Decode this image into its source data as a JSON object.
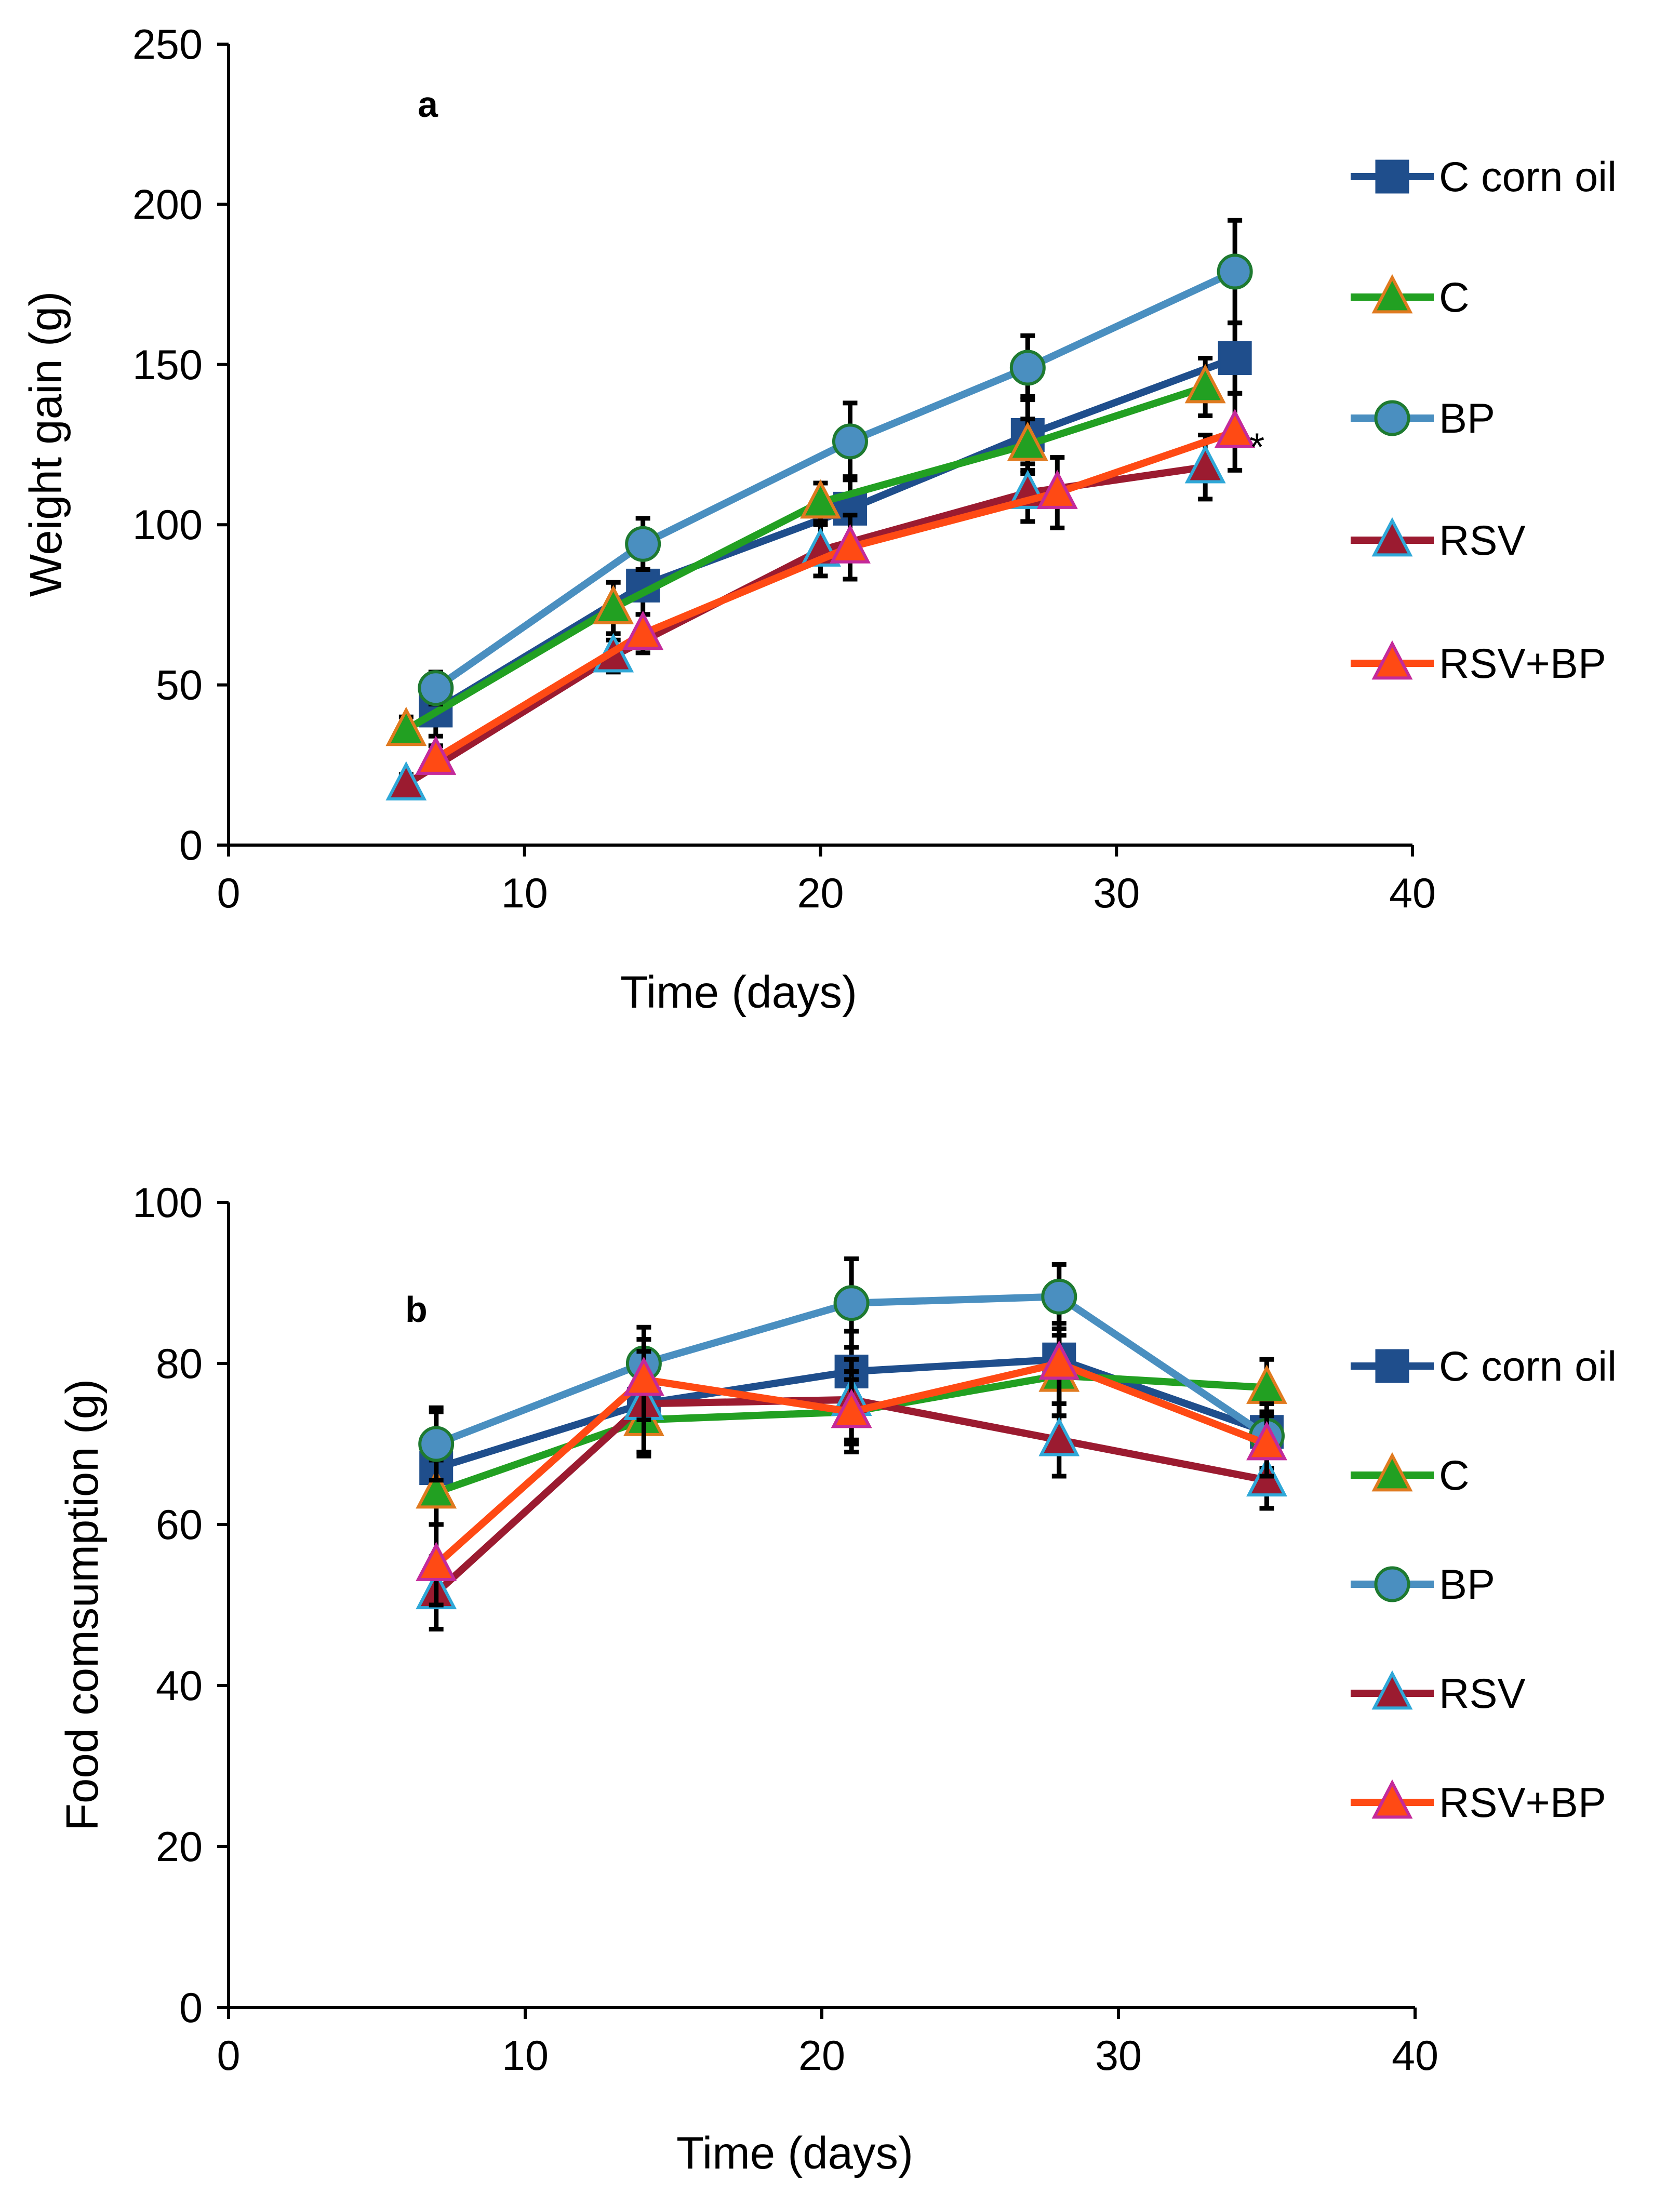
{
  "chart_data": [
    {
      "type": "line",
      "panel": "a",
      "xlabel": "Time (days)",
      "ylabel": "Weight gain (g)",
      "xlim": [
        0,
        40
      ],
      "ylim": [
        0,
        250
      ],
      "xticks": [
        0,
        10,
        20,
        30,
        40
      ],
      "yticks": [
        0,
        50,
        100,
        150,
        200,
        250
      ],
      "grid": false,
      "legend_position": "right",
      "annotations": [
        {
          "text": "*",
          "series": "RSV+BP",
          "x": 34
        }
      ],
      "series": [
        {
          "name": "C corn oil",
          "color": "#1F4E8C",
          "marker": "square",
          "marker_fill": "#1F4E8C",
          "marker_edge": "#1F4E8C",
          "x": [
            7,
            14,
            21,
            27,
            34
          ],
          "y": [
            42,
            81,
            105,
            128,
            152
          ],
          "err": [
            8,
            9,
            10,
            12,
            11
          ]
        },
        {
          "name": "C",
          "color": "#22A022",
          "marker": "triangle",
          "marker_fill": "#22A022",
          "marker_edge": "#E07A1F",
          "x": [
            6,
            13,
            20,
            27,
            33
          ],
          "y": [
            36,
            74,
            107,
            125,
            143
          ],
          "err": [
            4,
            8,
            6,
            8,
            9
          ]
        },
        {
          "name": "BP",
          "color": "#4A8FC0",
          "marker": "circle",
          "marker_fill": "#4A8FC0",
          "marker_edge": "#1E7A30",
          "x": [
            7,
            14,
            21,
            27,
            34
          ],
          "y": [
            49,
            94,
            126,
            149,
            179
          ],
          "err": [
            5,
            8,
            12,
            10,
            16
          ]
        },
        {
          "name": "RSV",
          "color": "#9B1B30",
          "marker": "triangle",
          "marker_fill": "#9B1B30",
          "marker_edge": "#2FA8D8",
          "x": [
            6,
            13,
            20,
            27,
            33
          ],
          "y": [
            19,
            59,
            92,
            110,
            118
          ],
          "err": [
            3,
            5,
            8,
            9,
            10
          ]
        },
        {
          "name": "RSV+BP",
          "color": "#FF4A14",
          "marker": "triangle",
          "marker_fill": "#FF4A14",
          "marker_edge": "#C42A9A",
          "x": [
            7,
            14,
            21,
            28,
            34
          ],
          "y": [
            27,
            66,
            93,
            110,
            129
          ],
          "err": [
            4,
            6,
            10,
            11,
            12
          ]
        }
      ]
    },
    {
      "type": "line",
      "panel": "b",
      "xlabel": "Time (days)",
      "ylabel": "Food comsumption (g)",
      "xlim": [
        0,
        40
      ],
      "ylim": [
        0,
        100
      ],
      "xticks": [
        0,
        10,
        20,
        30,
        40
      ],
      "yticks": [
        0,
        20,
        40,
        60,
        80,
        100
      ],
      "grid": false,
      "legend_position": "right",
      "series": [
        {
          "name": "C corn oil",
          "color": "#1F4E8C",
          "marker": "square",
          "marker_fill": "#1F4E8C",
          "marker_edge": "#1F4E8C",
          "x": [
            7,
            14,
            21,
            28,
            35
          ],
          "y": [
            67,
            75,
            79,
            80.5,
            71.5
          ],
          "err": [
            7,
            6,
            5,
            7,
            5
          ]
        },
        {
          "name": "C",
          "color": "#22A022",
          "marker": "triangle",
          "marker_fill": "#22A022",
          "marker_edge": "#E07A1F",
          "x": [
            7,
            14,
            21,
            28,
            35
          ],
          "y": [
            64,
            73,
            74,
            78.5,
            77
          ],
          "err": [
            4,
            4,
            5,
            5,
            3.5
          ]
        },
        {
          "name": "BP",
          "color": "#4A8FC0",
          "marker": "circle",
          "marker_fill": "#4A8FC0",
          "marker_edge": "#1E7A30",
          "x": [
            7,
            14,
            21,
            28,
            35
          ],
          "y": [
            70,
            80,
            87.5,
            88.3,
            71
          ],
          "err": [
            4.5,
            4.5,
            5.5,
            4,
            4
          ]
        },
        {
          "name": "RSV",
          "color": "#9B1B30",
          "marker": "triangle",
          "marker_fill": "#9B1B30",
          "marker_edge": "#2FA8D8",
          "x": [
            7,
            14,
            21,
            28,
            35
          ],
          "y": [
            51.5,
            75,
            75.5,
            70.5,
            65.5
          ],
          "err": [
            4.5,
            6.5,
            5,
            4.5,
            3.5
          ]
        },
        {
          "name": "RSV+BP",
          "color": "#FF4A14",
          "marker": "triangle",
          "marker_fill": "#FF4A14",
          "marker_edge": "#C42A9A",
          "x": [
            7,
            14,
            21,
            28,
            35
          ],
          "y": [
            55,
            78,
            74,
            80,
            70
          ],
          "err": [
            5,
            5,
            4,
            5,
            4
          ]
        }
      ]
    }
  ]
}
